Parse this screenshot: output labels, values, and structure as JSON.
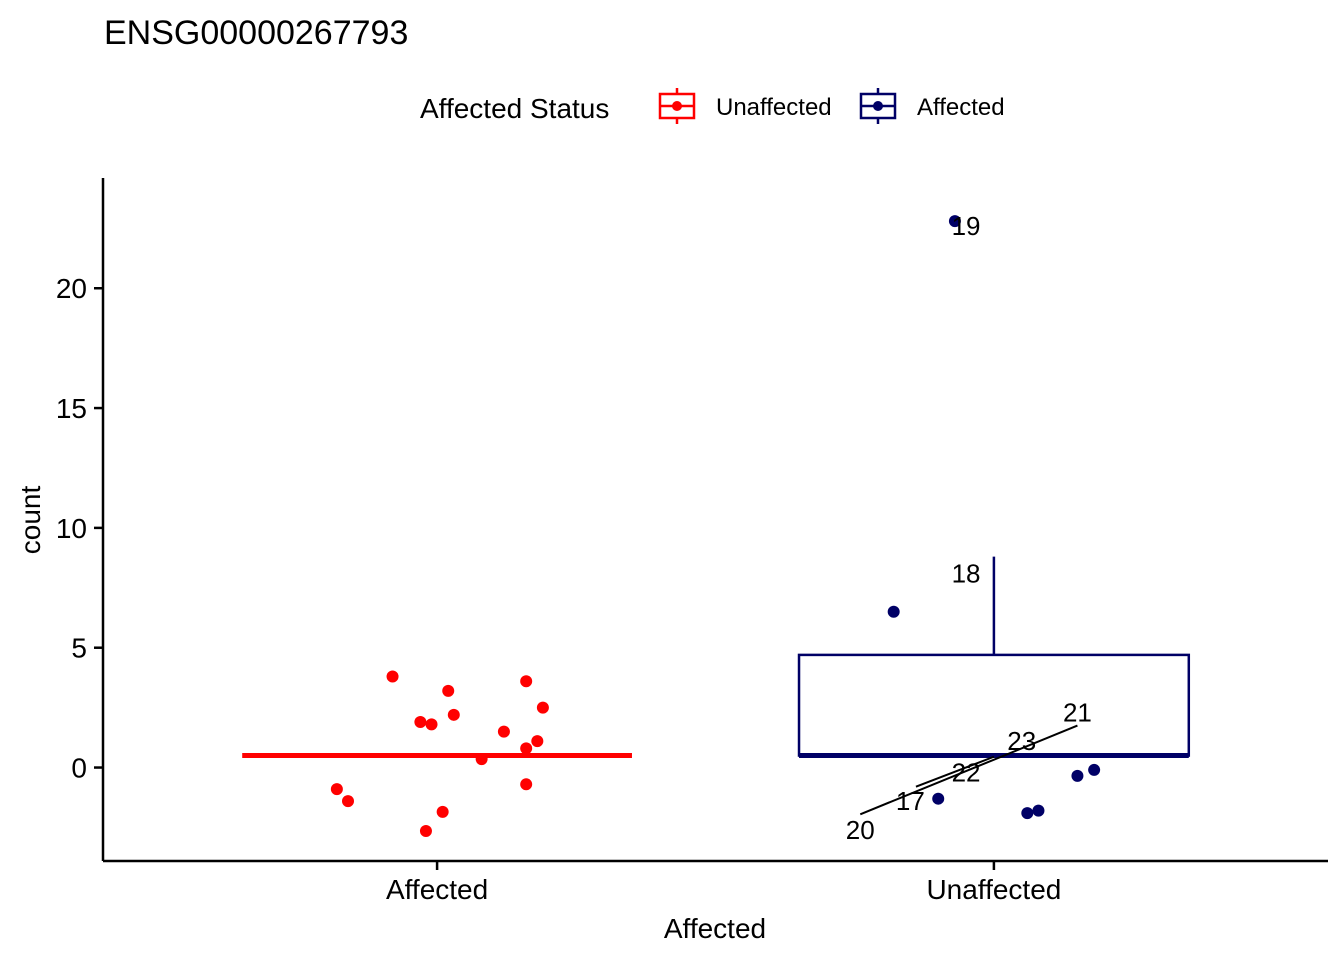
{
  "chart_data": {
    "type": "box",
    "title": "ENSG00000267793",
    "xlabel": "Affected",
    "ylabel": "count",
    "ylim": [
      -3.9,
      24.6
    ],
    "yticks": [
      0,
      5,
      10,
      15,
      20
    ],
    "grid": false,
    "legend": {
      "title": "Affected Status",
      "position": "top",
      "entries": [
        {
          "label": "Unaffected",
          "color": "#ff0000"
        },
        {
          "label": "Affected",
          "color": "#000066"
        }
      ]
    },
    "categories": [
      "Affected",
      "Unaffected"
    ],
    "groups": [
      {
        "category": "Affected",
        "color": "#ff0000",
        "box": {
          "min": 0.5,
          "q1": 0.5,
          "median": 0.5,
          "q3": 0.5,
          "max": 0.5
        },
        "points": [
          {
            "x": -0.08,
            "y": 3.8
          },
          {
            "x": 0.02,
            "y": 3.2
          },
          {
            "x": 0.16,
            "y": 3.6
          },
          {
            "x": 0.19,
            "y": 2.5
          },
          {
            "x": 0.03,
            "y": 2.2
          },
          {
            "x": -0.03,
            "y": 1.9
          },
          {
            "x": -0.01,
            "y": 1.8
          },
          {
            "x": 0.12,
            "y": 1.5
          },
          {
            "x": 0.18,
            "y": 1.1
          },
          {
            "x": 0.16,
            "y": 0.8
          },
          {
            "x": 0.08,
            "y": 0.35
          },
          {
            "x": -0.18,
            "y": -0.9
          },
          {
            "x": -0.16,
            "y": -1.4
          },
          {
            "x": 0.16,
            "y": -0.7
          },
          {
            "x": 0.01,
            "y": -1.85
          },
          {
            "x": -0.02,
            "y": -2.65
          }
        ]
      },
      {
        "category": "Unaffected",
        "color": "#000066",
        "box": {
          "min": 0.5,
          "q1": 0.5,
          "median": 0.5,
          "q3": 4.7,
          "max": 8.8
        },
        "points": [
          {
            "x": -0.07,
            "y": 22.8
          },
          {
            "x": -0.18,
            "y": 6.5
          },
          {
            "x": -0.1,
            "y": -1.3
          },
          {
            "x": 0.06,
            "y": -1.9
          },
          {
            "x": 0.08,
            "y": -1.8
          },
          {
            "x": 0.15,
            "y": -0.35
          },
          {
            "x": 0.18,
            "y": -0.1
          }
        ],
        "labels": [
          {
            "text": "19",
            "x": -0.05,
            "y": 22.6
          },
          {
            "text": "18",
            "x": -0.05,
            "y": 8.1
          },
          {
            "text": "21",
            "x": 0.15,
            "y": 2.3
          },
          {
            "text": "23",
            "x": 0.05,
            "y": 1.1
          },
          {
            "text": "22",
            "x": -0.05,
            "y": -0.2
          },
          {
            "text": "17",
            "x": -0.15,
            "y": -1.4
          },
          {
            "text": "20",
            "x": -0.24,
            "y": -2.6
          }
        ],
        "label_segments": [
          {
            "x1": -0.24,
            "y1": -1.95,
            "x2": 0.15,
            "y2": 1.75
          },
          {
            "x1": -0.14,
            "y1": -0.8,
            "x2": 0.0,
            "y2": 0.45
          }
        ]
      }
    ]
  }
}
